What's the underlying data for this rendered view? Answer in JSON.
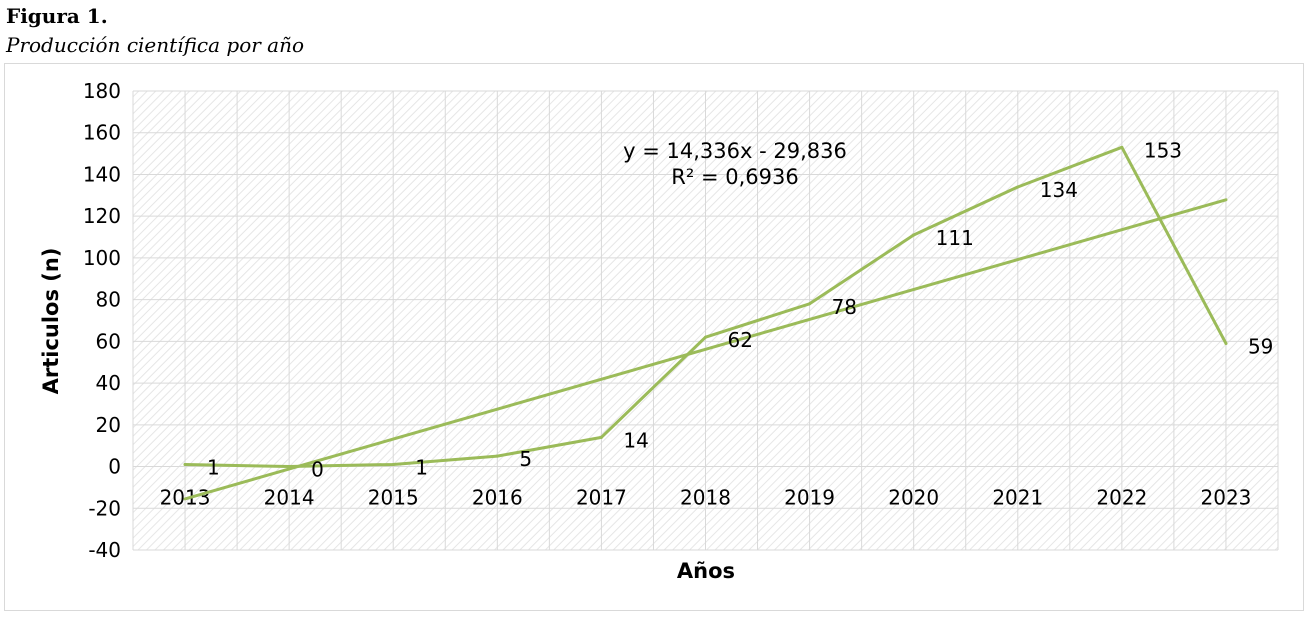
{
  "figure": {
    "label": "Figura 1.",
    "caption": "Producción científica por año"
  },
  "colors": {
    "series": "#9bbb59",
    "grid": "#d9d9d9",
    "plot_hatch": "#e6e6e6"
  },
  "chart_data": {
    "type": "line",
    "title": "",
    "xlabel": "Años",
    "ylabel": "Articulos (n)",
    "ylim": [
      -40,
      180
    ],
    "ytick_step": 20,
    "yticks": [
      "-40",
      "-20",
      "0",
      "20",
      "40",
      "60",
      "80",
      "100",
      "120",
      "140",
      "160",
      "180"
    ],
    "categories": [
      "2013",
      "2014",
      "2015",
      "2016",
      "2017",
      "2018",
      "2019",
      "2020",
      "2021",
      "2022",
      "2023"
    ],
    "series": [
      {
        "values": [
          1,
          0,
          1,
          5,
          14,
          62,
          78,
          111,
          134,
          153,
          59
        ],
        "data_labels": [
          "1",
          "0",
          "1",
          "5",
          "14",
          "62",
          "78",
          "111",
          "134",
          "153",
          "59"
        ]
      }
    ],
    "trendline": {
      "type": "linear",
      "slope": 14.336,
      "intercept": -29.836,
      "equation": "y = 14,336x - 29,836",
      "r_squared": "R² = 0,6936"
    },
    "grid": true,
    "legend": "none"
  }
}
